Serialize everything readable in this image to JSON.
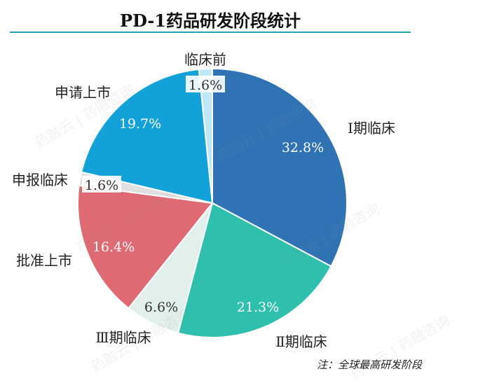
{
  "title": "PD-1药品研发阶段统计",
  "footnote": "注：全球最高研发阶段",
  "watermark": "药融云 | 药融咨询",
  "chart_data": {
    "type": "pie",
    "title": "PD-1药品研发阶段统计",
    "slices": [
      {
        "label": "Ⅰ期临床",
        "value": 32.8,
        "value_label": "32.8%",
        "color": "#2f73b5"
      },
      {
        "label": "Ⅱ期临床",
        "value": 21.3,
        "value_label": "21.3%",
        "color": "#2ebfad"
      },
      {
        "label": "Ⅲ期临床",
        "value": 6.6,
        "value_label": "6.6%",
        "color": "#e2f0eb"
      },
      {
        "label": "批准上市",
        "value": 16.4,
        "value_label": "16.4%",
        "color": "#df6a74"
      },
      {
        "label": "申报临床",
        "value": 1.6,
        "value_label": "1.6%",
        "color": "#e0e0e0"
      },
      {
        "label": "申请上市",
        "value": 19.7,
        "value_label": "19.7%",
        "color": "#12a2d9"
      },
      {
        "label": "临床前",
        "value": 1.6,
        "value_label": "1.6%",
        "color": "#bfe7f7"
      }
    ],
    "start_angle": "12 o'clock",
    "direction": "clockwise"
  }
}
